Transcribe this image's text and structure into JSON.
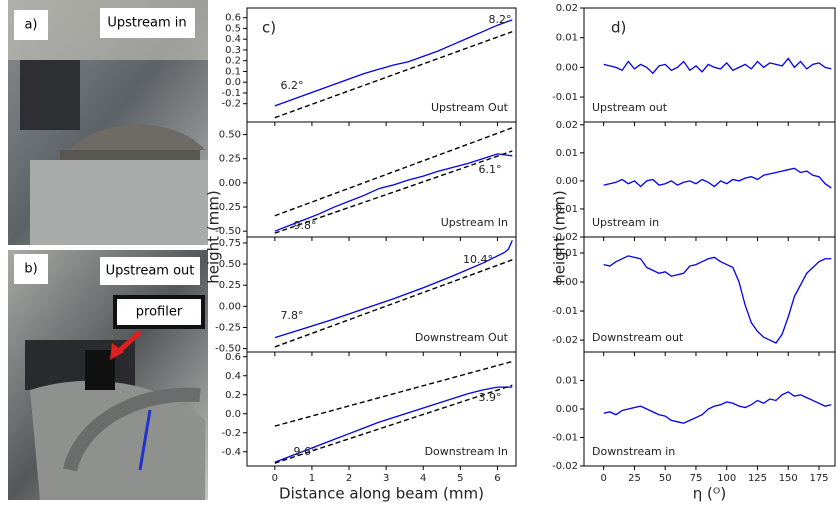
{
  "photos": {
    "a": {
      "label": "a)",
      "caption": "Upstream in"
    },
    "b": {
      "label": "b)",
      "caption": "Upstream out",
      "annotation": "profiler"
    }
  },
  "chart_data": [
    {
      "type": "line",
      "panel_label": "c)",
      "xlabel": "Distance along beam (mm)",
      "ylabel": "height (mm)",
      "xlim": [
        -0.75,
        6.5
      ],
      "xticks": [
        0,
        1,
        2,
        3,
        4,
        5,
        6
      ],
      "subplots": [
        {
          "name": "Upstream Out",
          "ylim": [
            -0.37,
            0.69
          ],
          "yticks": [
            -0.2,
            -0.1,
            {
              "value": 0,
              "label": "0.0"
            },
            0.1,
            0.2,
            0.3,
            0.4,
            0.5,
            0.6
          ],
          "annotations": [
            "6.2°",
            "8.2°"
          ],
          "series": [
            {
              "color": "#0000ee",
              "style": "solid",
              "x": [
                0,
                0.4,
                0.8,
                1.2,
                1.6,
                2,
                2.4,
                2.8,
                3.2,
                3.6,
                4,
                4.4,
                4.8,
                5.2,
                5.6,
                6,
                6.4
              ],
              "values": [
                -0.22,
                -0.17,
                -0.12,
                -0.07,
                -0.02,
                0.03,
                0.08,
                0.12,
                0.16,
                0.19,
                0.24,
                0.29,
                0.35,
                0.41,
                0.47,
                0.53,
                0.58
              ]
            },
            {
              "color": "#000000",
              "style": "dashed",
              "x": [
                0,
                6.4
              ],
              "values": [
                -0.33,
                0.47
              ]
            }
          ]
        },
        {
          "name": "Upstream In",
          "ylim": [
            -0.56,
            0.63
          ],
          "yticks": [
            {
              "value": -0.5,
              "label": "-0.50"
            },
            -0.25,
            {
              "value": 0,
              "label": "0.00"
            },
            0.25,
            {
              "value": 0.5,
              "label": "0.50"
            }
          ],
          "annotations": [
            "9.8°",
            "6.1°"
          ],
          "series": [
            {
              "color": "#0000ee",
              "style": "solid",
              "x": [
                0,
                0.4,
                0.8,
                1.2,
                1.6,
                2,
                2.4,
                2.8,
                3.2,
                3.6,
                4,
                4.4,
                4.8,
                5.2,
                5.6,
                6,
                6.4
              ],
              "values": [
                -0.5,
                -0.44,
                -0.38,
                -0.32,
                -0.25,
                -0.19,
                -0.13,
                -0.06,
                -0.02,
                0.03,
                0.07,
                0.12,
                0.16,
                0.2,
                0.25,
                0.3,
                0.28
              ]
            },
            {
              "color": "#000000",
              "style": "dashed",
              "x": [
                0,
                6.4
              ],
              "values": [
                -0.34,
                0.57
              ]
            },
            {
              "color": "#000000",
              "style": "dashed",
              "x": [
                0,
                6.4
              ],
              "values": [
                -0.52,
                0.33
              ]
            }
          ]
        },
        {
          "name": "Downstream Out",
          "ylim": [
            -0.54,
            0.82
          ],
          "yticks": [
            {
              "value": -0.5,
              "label": "-0.50"
            },
            -0.25,
            {
              "value": 0,
              "label": "0.00"
            },
            0.25,
            {
              "value": 0.5,
              "label": "0.50"
            },
            0.75
          ],
          "annotations": [
            "7.8°",
            "10.4°"
          ],
          "series": [
            {
              "color": "#0000ee",
              "style": "solid",
              "x": [
                0,
                0.8,
                1.6,
                2.4,
                3.2,
                4,
                4.8,
                5.6,
                6.2,
                6.3,
                6.4
              ],
              "values": [
                -0.37,
                -0.26,
                -0.15,
                -0.03,
                0.09,
                0.22,
                0.36,
                0.51,
                0.64,
                0.68,
                0.78
              ]
            },
            {
              "color": "#000000",
              "style": "dashed",
              "x": [
                0,
                6.4
              ],
              "values": [
                -0.48,
                0.55
              ]
            }
          ]
        },
        {
          "name": "Downstream In",
          "ylim": [
            -0.55,
            0.65
          ],
          "yticks": [
            -0.4,
            -0.2,
            {
              "value": 0,
              "label": "0.0"
            },
            0.2,
            0.4,
            0.6
          ],
          "annotations": [
            "9.6°",
            "3.9°"
          ],
          "series": [
            {
              "color": "#0000ee",
              "style": "solid",
              "x": [
                0,
                0.4,
                0.8,
                1.2,
                1.6,
                2,
                2.4,
                2.8,
                3.2,
                3.6,
                4,
                4.4,
                4.8,
                5.2,
                5.6,
                6,
                6.4
              ],
              "values": [
                -0.51,
                -0.45,
                -0.39,
                -0.33,
                -0.27,
                -0.21,
                -0.15,
                -0.09,
                -0.04,
                0.01,
                0.06,
                0.11,
                0.16,
                0.21,
                0.25,
                0.28,
                0.28
              ]
            },
            {
              "color": "#000000",
              "style": "dashed",
              "x": [
                0,
                6.4
              ],
              "values": [
                -0.13,
                0.55
              ]
            },
            {
              "color": "#000000",
              "style": "dashed",
              "x": [
                0,
                6.4
              ],
              "values": [
                -0.52,
                0.3
              ]
            }
          ]
        }
      ]
    },
    {
      "type": "line",
      "panel_label": "d)",
      "xlabel": "η (ᴼ)",
      "ylabel": "height (mm)",
      "xlim": [
        -16,
        188
      ],
      "xticks": [
        0,
        25,
        50,
        75,
        100,
        125,
        150,
        175
      ],
      "x": [
        0,
        5,
        10,
        15,
        20,
        25,
        30,
        35,
        40,
        45,
        50,
        55,
        60,
        65,
        70,
        75,
        80,
        85,
        90,
        95,
        100,
        105,
        110,
        115,
        120,
        125,
        130,
        135,
        140,
        145,
        150,
        155,
        160,
        165,
        170,
        175,
        180,
        185
      ],
      "subplots": [
        {
          "name": "Upstream out",
          "ylim": [
            -0.0184,
            0.02
          ],
          "yticks": [
            -0.01,
            {
              "value": 0,
              "label": "0.00"
            },
            0.01,
            0.02
          ],
          "series": [
            {
              "color": "#0000ee",
              "style": "solid",
              "values": [
                0.001,
                0.0005,
                0.0,
                -0.001,
                0.002,
                -0.0005,
                0.001,
                0.0,
                -0.002,
                0.0005,
                0.001,
                -0.001,
                0.0,
                0.002,
                -0.001,
                0.0005,
                -0.0015,
                0.001,
                0.0,
                -0.0005,
                0.0015,
                -0.001,
                0.0,
                0.001,
                -0.0005,
                0.002,
                0.0,
                0.0015,
                0.001,
                0.0005,
                0.003,
                0.0,
                0.002,
                -0.0005,
                0.001,
                0.0015,
                0.0,
                -0.0005
              ]
            }
          ]
        },
        {
          "name": "Upstream in",
          "ylim": [
            -0.02,
            0.021
          ],
          "yticks": [
            -0.02,
            -0.01,
            {
              "value": 0,
              "label": "0.00"
            },
            0.01,
            0.02
          ],
          "series": [
            {
              "color": "#0000ee",
              "style": "solid",
              "values": [
                -0.0015,
                -0.001,
                -0.0005,
                0.0005,
                -0.001,
                0.0,
                -0.002,
                0.0,
                0.0005,
                -0.0015,
                -0.001,
                0.0,
                -0.0015,
                -0.0005,
                0.0,
                -0.001,
                0.0005,
                -0.0005,
                -0.002,
                0.0,
                -0.001,
                0.0005,
                0.0,
                0.001,
                0.0015,
                0.0005,
                0.002,
                0.0025,
                0.003,
                0.0035,
                0.004,
                0.0045,
                0.003,
                0.0035,
                0.002,
                0.0015,
                -0.001,
                -0.0025
              ]
            }
          ]
        },
        {
          "name": "Downstream out",
          "ylim": [
            -0.0241,
            0.0155
          ],
          "yticks": [
            -0.02,
            -0.01,
            {
              "value": 0,
              "label": "0.00"
            },
            0.01
          ],
          "series": [
            {
              "color": "#0000ee",
              "style": "solid",
              "values": [
                0.006,
                0.0055,
                0.007,
                0.008,
                0.009,
                0.0085,
                0.008,
                0.005,
                0.004,
                0.003,
                0.0035,
                0.002,
                0.0025,
                0.003,
                0.0055,
                0.006,
                0.007,
                0.008,
                0.0085,
                0.007,
                0.006,
                0.005,
                0.0,
                -0.008,
                -0.014,
                -0.017,
                -0.019,
                -0.02,
                -0.021,
                -0.018,
                -0.012,
                -0.005,
                -0.001,
                0.003,
                0.005,
                0.007,
                0.008,
                0.008
              ]
            }
          ]
        },
        {
          "name": "Downstream in",
          "ylim": [
            -0.02,
            0.02
          ],
          "yticks": [
            -0.02,
            -0.01,
            {
              "value": 0,
              "label": "0.00"
            },
            0.01
          ],
          "series": [
            {
              "color": "#0000ee",
              "style": "solid",
              "values": [
                -0.0015,
                -0.001,
                -0.002,
                -0.0005,
                0.0,
                0.0005,
                0.001,
                0.0,
                -0.001,
                -0.002,
                -0.0025,
                -0.004,
                -0.0045,
                -0.005,
                -0.004,
                -0.003,
                -0.002,
                0.0,
                0.001,
                0.0015,
                0.0025,
                0.002,
                0.001,
                0.0005,
                0.0015,
                0.003,
                0.002,
                0.0035,
                0.003,
                0.005,
                0.006,
                0.0045,
                0.005,
                0.004,
                0.003,
                0.002,
                0.001,
                0.0015
              ]
            }
          ]
        }
      ]
    }
  ]
}
